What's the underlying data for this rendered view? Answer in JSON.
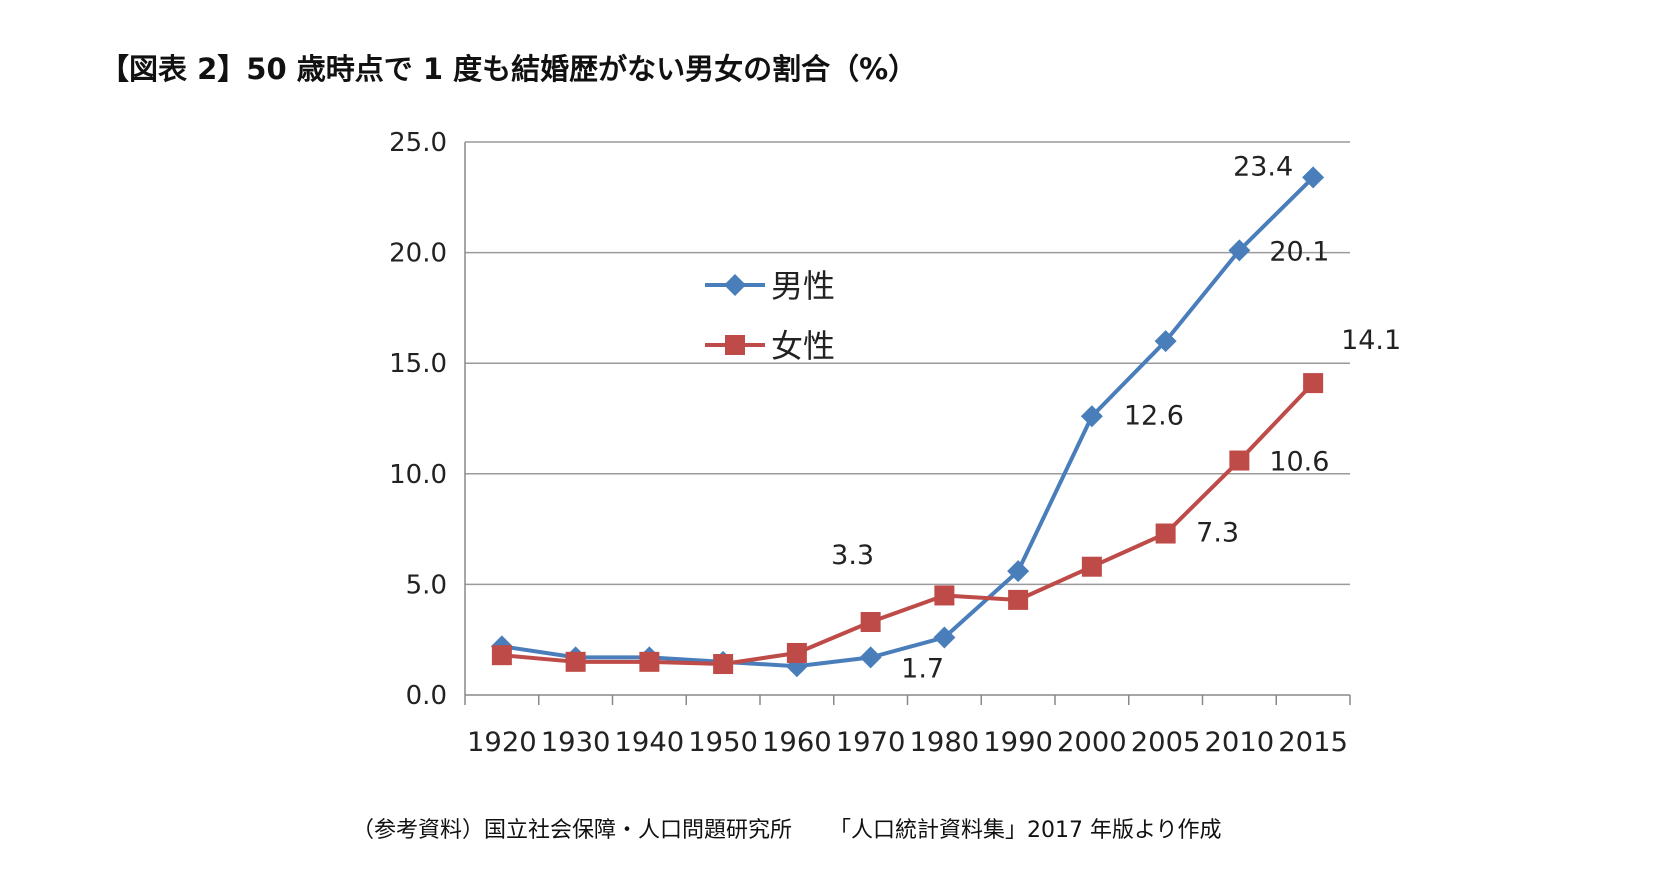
{
  "title": "【図表 2】50 歳時点で 1 度も結婚歴がない男女の割合（%）",
  "footer": {
    "source": "（参考資料）国立社会保障・人口問題研究所",
    "publication": "「人口統計資料集」2017 年版より作成"
  },
  "chart_data": {
    "type": "line",
    "categories": [
      "1920",
      "1930",
      "1940",
      "1950",
      "1960",
      "1970",
      "1980",
      "1990",
      "2000",
      "2005",
      "2010",
      "2015"
    ],
    "ylim": [
      0,
      25
    ],
    "yticks": [
      "25.0",
      "20.0",
      "15.0",
      "10.0",
      "5.0",
      "0.0"
    ],
    "grid": true,
    "legend_placement": "upper-left-center",
    "series": [
      {
        "name": "男性",
        "color": "#4a7ebb",
        "marker": "diamond",
        "values": [
          2.2,
          1.7,
          1.7,
          1.5,
          1.3,
          1.7,
          2.6,
          5.6,
          12.6,
          16.0,
          20.1,
          23.4
        ],
        "data_labels": [
          null,
          null,
          null,
          null,
          null,
          "1.7",
          null,
          null,
          "12.6",
          null,
          "20.1",
          "23.4"
        ]
      },
      {
        "name": "女性",
        "color": "#be4b48",
        "marker": "square",
        "values": [
          1.8,
          1.5,
          1.5,
          1.4,
          1.9,
          3.3,
          4.5,
          4.3,
          5.8,
          7.3,
          10.6,
          14.1
        ],
        "data_labels": [
          null,
          null,
          null,
          null,
          null,
          "3.3",
          null,
          null,
          null,
          "7.3",
          "10.6",
          "14.1"
        ]
      }
    ]
  }
}
